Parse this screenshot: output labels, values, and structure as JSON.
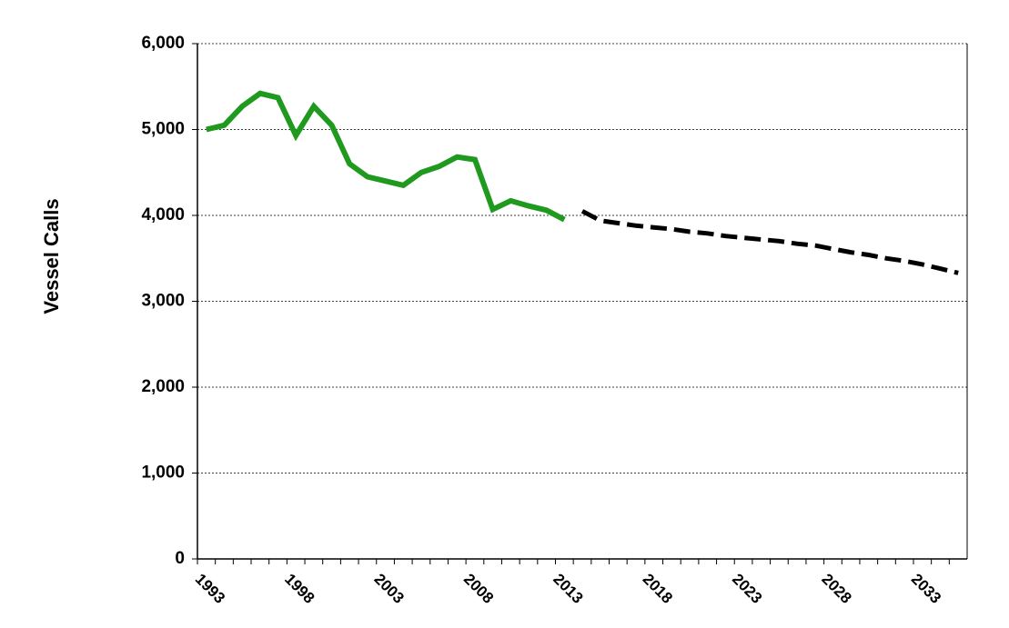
{
  "chart_data": {
    "type": "line",
    "y_label": "Vessel Calls",
    "x": [
      1993,
      1994,
      1995,
      1996,
      1997,
      1998,
      1999,
      2000,
      2001,
      2002,
      2003,
      2004,
      2005,
      2006,
      2007,
      2008,
      2009,
      2010,
      2011,
      2012,
      2013,
      2014,
      2015,
      2016,
      2017,
      2018,
      2019,
      2020,
      2021,
      2022,
      2023,
      2024,
      2025,
      2026,
      2027,
      2028,
      2029,
      2030,
      2031,
      2032,
      2033,
      2034,
      2035
    ],
    "xlim": [
      1992.5,
      2035.5
    ],
    "xticks": [
      1993,
      1998,
      2003,
      2008,
      2013,
      2018,
      2023,
      2028,
      2033
    ],
    "ylim": [
      0,
      6000
    ],
    "yticks": [
      0,
      {
        "value": 1000,
        "label": "1,000"
      },
      {
        "value": 2000,
        "label": "2,000"
      },
      {
        "value": 3000,
        "label": "3,000"
      },
      {
        "value": 4000,
        "label": "4,000"
      },
      {
        "value": 5000,
        "label": "5,000"
      },
      {
        "value": 6000,
        "label": "6,000"
      }
    ],
    "grid": true,
    "series": [
      {
        "color": "#1f9a1f",
        "dashed": false,
        "values": [
          5000,
          5050,
          5270,
          5420,
          5370,
          4930,
          5270,
          5050,
          4600,
          4450,
          4400,
          4350,
          4500,
          4570,
          4680,
          4650,
          4070,
          4170,
          4110,
          4060,
          3950,
          null,
          null,
          null,
          null,
          null,
          null,
          null,
          null,
          null,
          null,
          null,
          null,
          null,
          null,
          null,
          null,
          null,
          null,
          null,
          null,
          null,
          null
        ]
      },
      {
        "color": "#000000",
        "dashed": true,
        "values": [
          null,
          null,
          null,
          null,
          null,
          null,
          null,
          null,
          null,
          null,
          null,
          null,
          null,
          null,
          null,
          null,
          null,
          null,
          null,
          null,
          null,
          4050,
          3940,
          3910,
          3880,
          3860,
          3840,
          3810,
          3790,
          3760,
          3740,
          3720,
          3700,
          3670,
          3650,
          3610,
          3570,
          3540,
          3500,
          3470,
          3430,
          3380,
          3330
        ]
      }
    ]
  }
}
